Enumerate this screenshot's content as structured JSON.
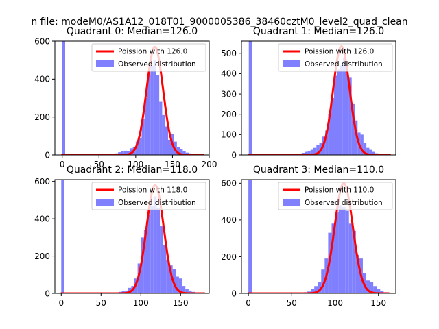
{
  "figure": {
    "suptitle": "n file: modeM0/AS1A12_018T01_9000005386_38460cztM0_level2_quad_clean"
  },
  "colors": {
    "histogram": "#8080ff",
    "poisson_line": "#ff0000"
  },
  "chart_data": [
    {
      "type": "bar",
      "title": "Quadrant 0: Median=126.0",
      "xlim": [
        -10,
        200
      ],
      "ylim": [
        0,
        600
      ],
      "xticks": [
        0,
        50,
        100,
        150,
        200
      ],
      "yticks": [
        0,
        200,
        400,
        600
      ],
      "legend": {
        "position": "upper right",
        "entries": [
          "Poission with 126.0",
          "Observed distribution"
        ]
      },
      "bin_width": 4,
      "bins": [
        [
          0,
          600
        ],
        [
          4,
          0
        ],
        [
          8,
          0
        ],
        [
          12,
          0
        ],
        [
          16,
          0
        ],
        [
          20,
          0
        ],
        [
          24,
          0
        ],
        [
          28,
          0
        ],
        [
          32,
          0
        ],
        [
          36,
          0
        ],
        [
          40,
          0
        ],
        [
          44,
          0
        ],
        [
          48,
          0
        ],
        [
          52,
          0
        ],
        [
          56,
          0
        ],
        [
          60,
          0
        ],
        [
          64,
          0
        ],
        [
          68,
          4
        ],
        [
          72,
          8
        ],
        [
          76,
          14
        ],
        [
          80,
          18
        ],
        [
          84,
          22
        ],
        [
          88,
          20
        ],
        [
          92,
          35
        ],
        [
          96,
          42
        ],
        [
          100,
          70
        ],
        [
          104,
          90
        ],
        [
          108,
          190
        ],
        [
          112,
          300
        ],
        [
          116,
          420
        ],
        [
          120,
          470
        ],
        [
          124,
          500
        ],
        [
          128,
          420
        ],
        [
          132,
          280
        ],
        [
          136,
          210
        ],
        [
          140,
          150
        ],
        [
          144,
          80
        ],
        [
          148,
          110
        ],
        [
          152,
          70
        ],
        [
          156,
          40
        ],
        [
          160,
          30
        ],
        [
          164,
          20
        ],
        [
          168,
          12
        ],
        [
          172,
          8
        ],
        [
          176,
          5
        ],
        [
          180,
          4
        ],
        [
          184,
          3
        ],
        [
          188,
          2
        ]
      ],
      "poisson": {
        "mean": 126.0,
        "peak": 570,
        "x_range": [
          0,
          192
        ]
      }
    },
    {
      "type": "bar",
      "title": "Quadrant 1: Median=126.0",
      "xlim": [
        -10,
        200
      ],
      "ylim": [
        0,
        560
      ],
      "xticks": [],
      "yticks": [
        0,
        100,
        200,
        300,
        400,
        500
      ],
      "legend": {
        "position": "upper right",
        "entries": [
          "Poission with 126.0",
          "Observed distribution"
        ]
      },
      "bin_width": 4,
      "bins": [
        [
          0,
          560
        ],
        [
          4,
          0
        ],
        [
          8,
          0
        ],
        [
          12,
          0
        ],
        [
          16,
          0
        ],
        [
          20,
          0
        ],
        [
          24,
          0
        ],
        [
          28,
          0
        ],
        [
          32,
          0
        ],
        [
          36,
          0
        ],
        [
          40,
          0
        ],
        [
          44,
          0
        ],
        [
          48,
          0
        ],
        [
          52,
          0
        ],
        [
          56,
          0
        ],
        [
          60,
          0
        ],
        [
          64,
          0
        ],
        [
          68,
          5
        ],
        [
          72,
          10
        ],
        [
          76,
          15
        ],
        [
          80,
          18
        ],
        [
          84,
          25
        ],
        [
          88,
          35
        ],
        [
          92,
          50
        ],
        [
          96,
          60
        ],
        [
          100,
          90
        ],
        [
          104,
          120
        ],
        [
          108,
          200
        ],
        [
          112,
          280
        ],
        [
          116,
          390
        ],
        [
          120,
          420
        ],
        [
          124,
          440
        ],
        [
          128,
          480
        ],
        [
          132,
          400
        ],
        [
          136,
          380
        ],
        [
          140,
          250
        ],
        [
          144,
          170
        ],
        [
          148,
          110
        ],
        [
          152,
          100
        ],
        [
          156,
          60
        ],
        [
          160,
          35
        ],
        [
          164,
          25
        ],
        [
          168,
          15
        ],
        [
          172,
          8
        ],
        [
          176,
          5
        ],
        [
          180,
          3
        ],
        [
          184,
          2
        ],
        [
          188,
          1
        ]
      ],
      "poisson": {
        "mean": 126.0,
        "peak": 535,
        "x_range": [
          0,
          192
        ]
      }
    },
    {
      "type": "bar",
      "title": "Quadrant 2: Median=118.0",
      "xlim": [
        -8,
        186
      ],
      "ylim": [
        0,
        610
      ],
      "xticks": [
        0,
        50,
        100,
        150
      ],
      "yticks": [
        0,
        200,
        400,
        600
      ],
      "legend": {
        "position": "upper right",
        "entries": [
          "Poission with 118.0",
          "Observed distribution"
        ]
      },
      "bin_width": 4,
      "bins": [
        [
          0,
          610
        ],
        [
          4,
          0
        ],
        [
          8,
          0
        ],
        [
          12,
          0
        ],
        [
          16,
          0
        ],
        [
          20,
          0
        ],
        [
          24,
          0
        ],
        [
          28,
          0
        ],
        [
          32,
          0
        ],
        [
          36,
          0
        ],
        [
          40,
          0
        ],
        [
          44,
          0
        ],
        [
          48,
          0
        ],
        [
          52,
          0
        ],
        [
          56,
          0
        ],
        [
          60,
          0
        ],
        [
          64,
          2
        ],
        [
          68,
          5
        ],
        [
          72,
          8
        ],
        [
          76,
          12
        ],
        [
          80,
          15
        ],
        [
          84,
          30
        ],
        [
          88,
          40
        ],
        [
          92,
          80
        ],
        [
          96,
          160
        ],
        [
          100,
          300
        ],
        [
          104,
          340
        ],
        [
          108,
          420
        ],
        [
          112,
          470
        ],
        [
          116,
          520
        ],
        [
          120,
          460
        ],
        [
          124,
          360
        ],
        [
          128,
          260
        ],
        [
          132,
          180
        ],
        [
          136,
          150
        ],
        [
          140,
          130
        ],
        [
          144,
          90
        ],
        [
          148,
          80
        ],
        [
          152,
          40
        ],
        [
          156,
          25
        ],
        [
          160,
          15
        ],
        [
          164,
          8
        ],
        [
          168,
          5
        ],
        [
          172,
          3
        ],
        [
          176,
          2
        ]
      ],
      "poisson": {
        "mean": 118.0,
        "peak": 580,
        "x_range": [
          0,
          180
        ]
      }
    },
    {
      "type": "bar",
      "title": "Quadrant 3: Median=110.0",
      "xlim": [
        -8,
        170
      ],
      "ylim": [
        0,
        620
      ],
      "xticks": [
        0,
        50,
        100,
        150
      ],
      "yticks": [
        0,
        200,
        400,
        600
      ],
      "legend": {
        "position": "upper right",
        "entries": [
          "Poission with 110.0",
          "Observed distribution"
        ]
      },
      "bin_width": 4,
      "bins": [
        [
          0,
          620
        ],
        [
          4,
          0
        ],
        [
          8,
          0
        ],
        [
          12,
          0
        ],
        [
          16,
          0
        ],
        [
          20,
          0
        ],
        [
          24,
          0
        ],
        [
          28,
          0
        ],
        [
          32,
          0
        ],
        [
          36,
          0
        ],
        [
          40,
          0
        ],
        [
          44,
          0
        ],
        [
          48,
          0
        ],
        [
          52,
          0
        ],
        [
          56,
          0
        ],
        [
          60,
          3
        ],
        [
          64,
          6
        ],
        [
          68,
          10
        ],
        [
          72,
          25
        ],
        [
          76,
          40
        ],
        [
          80,
          60
        ],
        [
          84,
          130
        ],
        [
          88,
          190
        ],
        [
          92,
          330
        ],
        [
          96,
          380
        ],
        [
          100,
          440
        ],
        [
          104,
          480
        ],
        [
          108,
          470
        ],
        [
          112,
          450
        ],
        [
          116,
          380
        ],
        [
          120,
          340
        ],
        [
          124,
          210
        ],
        [
          128,
          190
        ],
        [
          132,
          110
        ],
        [
          136,
          70
        ],
        [
          140,
          60
        ],
        [
          144,
          40
        ],
        [
          148,
          25
        ],
        [
          152,
          12
        ],
        [
          156,
          6
        ],
        [
          160,
          3
        ]
      ],
      "poisson": {
        "mean": 110.0,
        "peak": 600,
        "x_range": [
          0,
          162
        ]
      }
    }
  ]
}
